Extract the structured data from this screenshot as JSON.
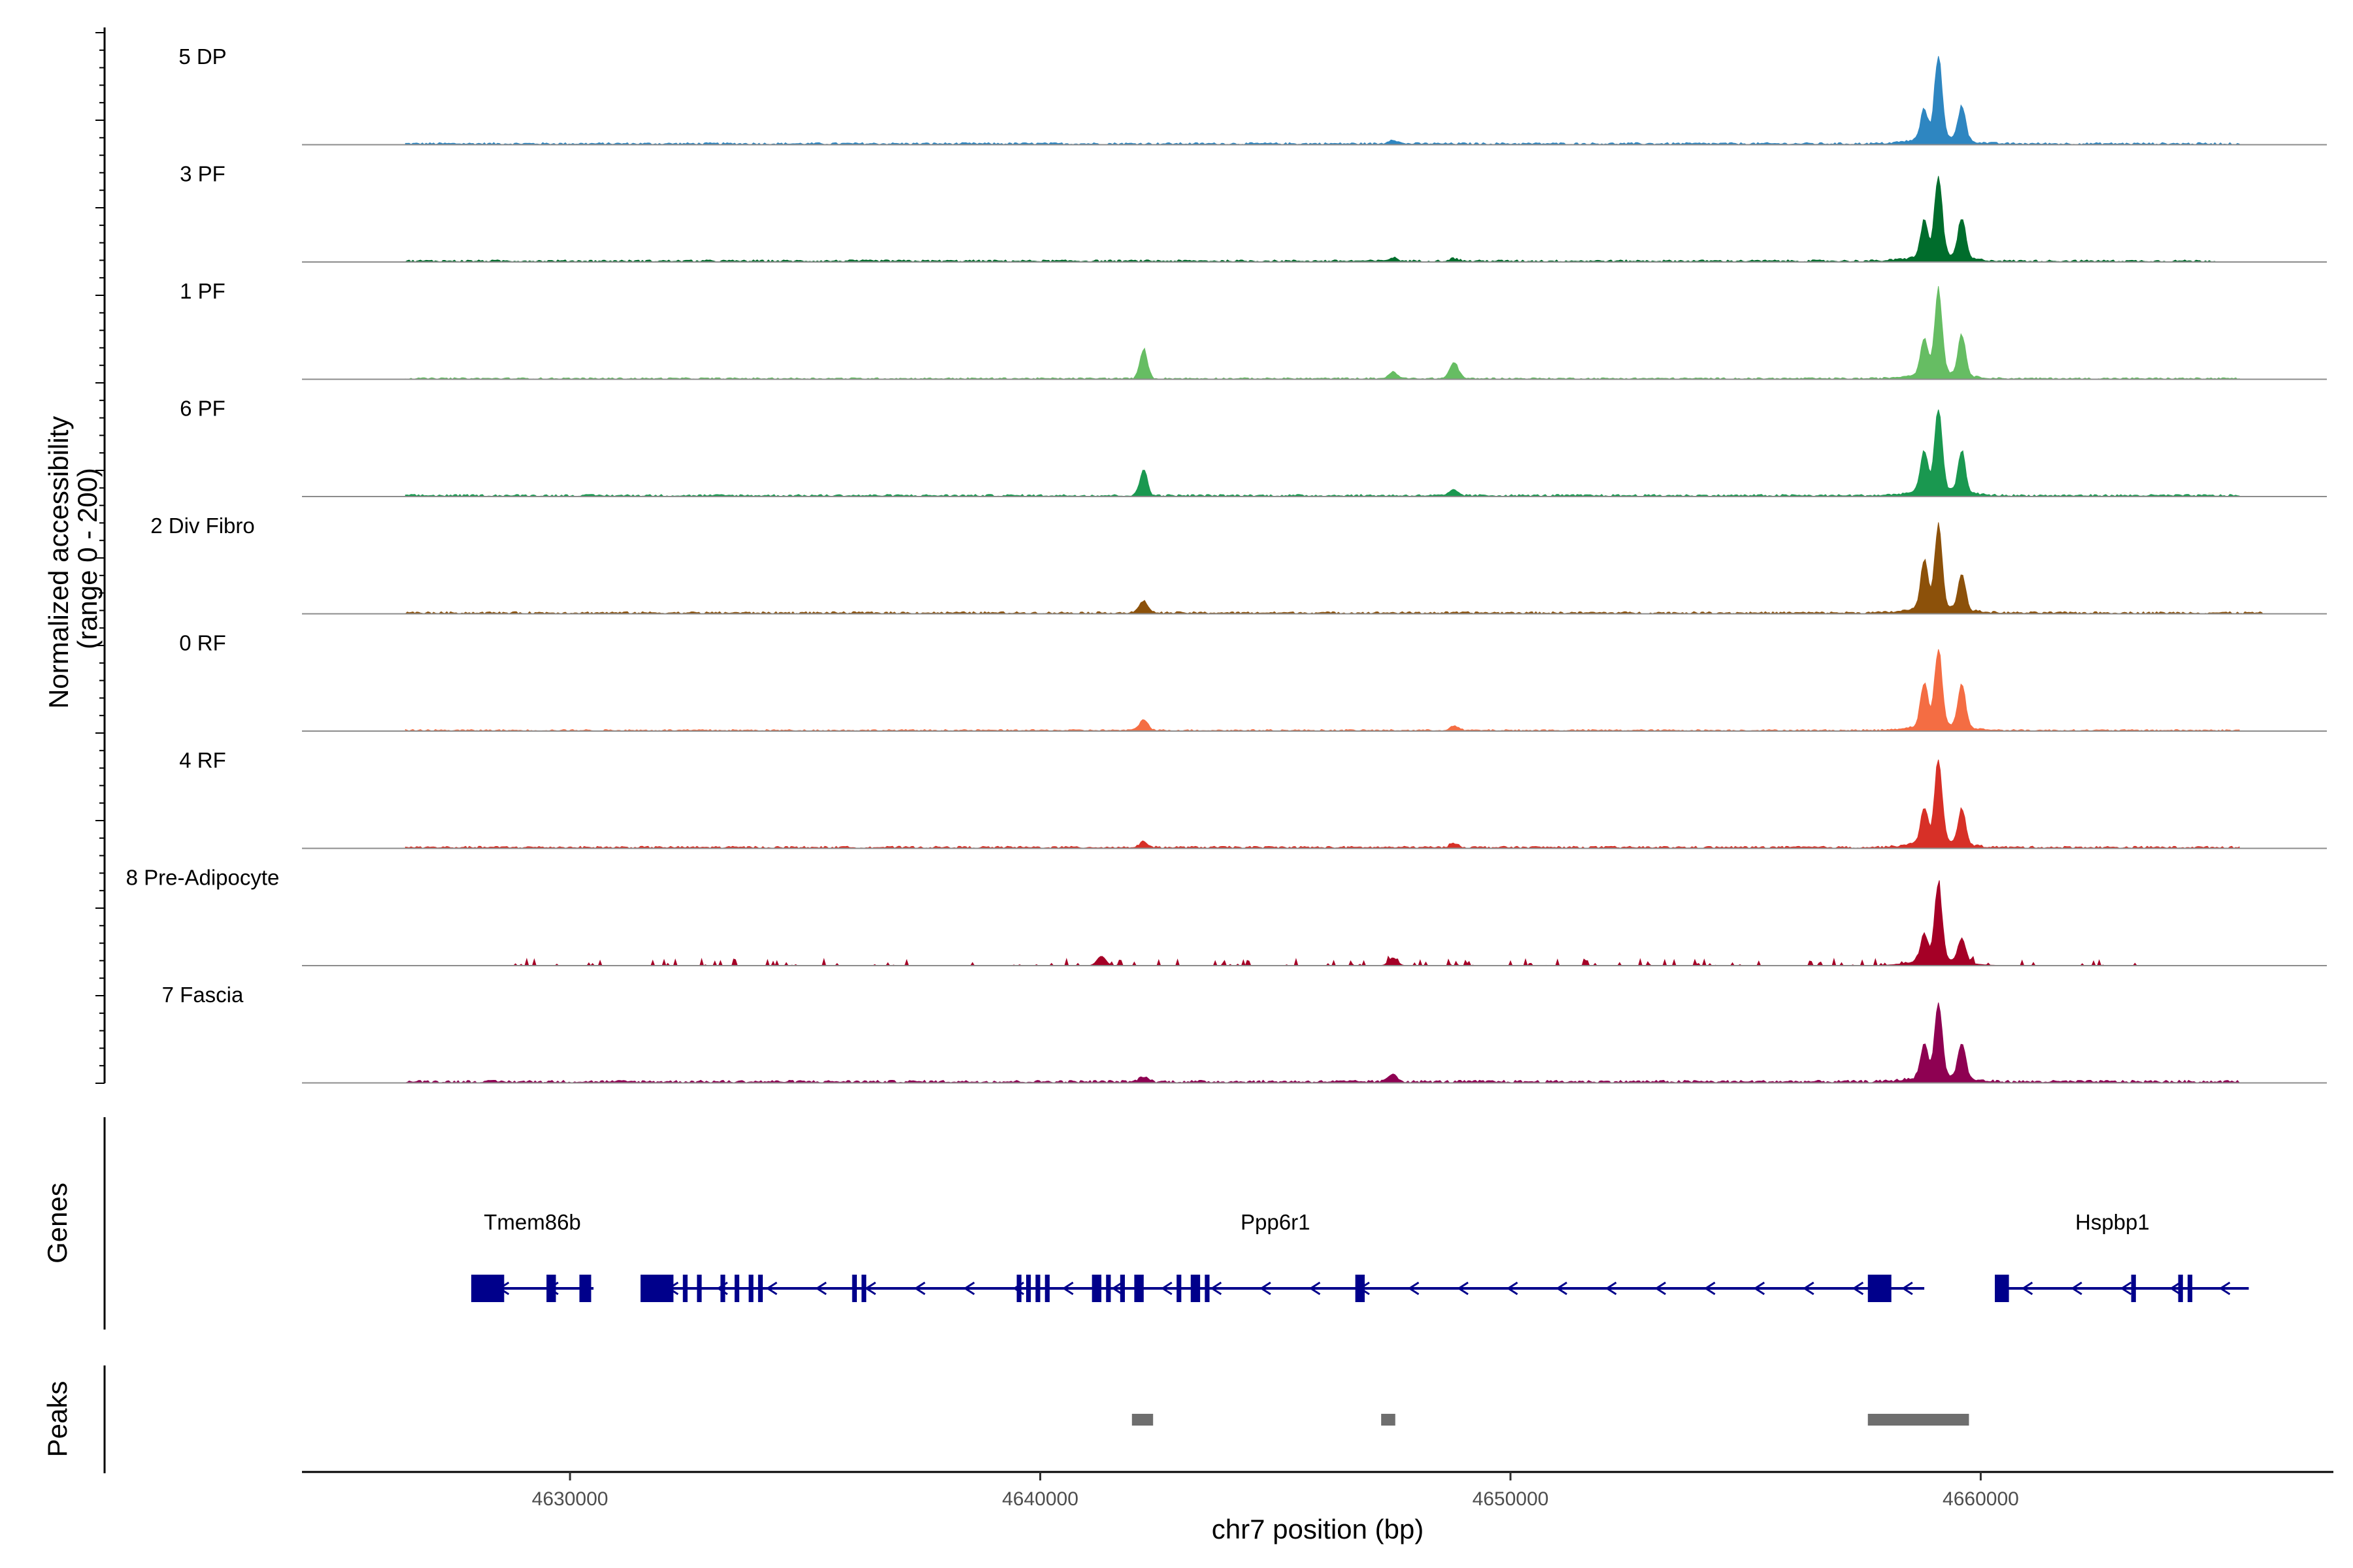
{
  "chart_data": {
    "type": "area",
    "title": "",
    "xlabel": "chr7 position (bp)",
    "ylabel": "Normalized accessibility\n(range 0 - 200)",
    "ylim": [
      0,
      200
    ],
    "xlim": [
      4624300,
      4667500
    ],
    "xticks": [
      4630000,
      4640000,
      4650000,
      4660000
    ],
    "xtick_labels": [
      "4630000",
      "4640000",
      "4650000",
      "4660000"
    ],
    "tracks": [
      {
        "name": "5 DP",
        "color": "#2e86c1",
        "peaks": [
          [
            4658800,
            55
          ],
          [
            4659100,
            155
          ],
          [
            4659600,
            65
          ],
          [
            4647500,
            8
          ]
        ],
        "noise": 4,
        "range": [
          4626500,
          4665500
        ]
      },
      {
        "name": "3 PF",
        "color": "#006d2c",
        "peaks": [
          [
            4658800,
            65
          ],
          [
            4659100,
            150
          ],
          [
            4659600,
            75
          ],
          [
            4647500,
            6
          ],
          [
            4648800,
            5
          ]
        ],
        "noise": 4,
        "range": [
          4626500,
          4665000
        ]
      },
      {
        "name": "1 PF",
        "color": "#66bd63",
        "peaks": [
          [
            4642200,
            55
          ],
          [
            4648800,
            30
          ],
          [
            4647500,
            12
          ],
          [
            4658800,
            65
          ],
          [
            4659100,
            155
          ],
          [
            4659600,
            75
          ]
        ],
        "noise": 3,
        "range": [
          4626500,
          4665500
        ]
      },
      {
        "name": "6 PF",
        "color": "#1a9850",
        "peaks": [
          [
            4642200,
            50
          ],
          [
            4648800,
            10
          ],
          [
            4658800,
            75
          ],
          [
            4659100,
            150
          ],
          [
            4659600,
            75
          ]
        ],
        "noise": 4,
        "range": [
          4626500,
          4665500
        ]
      },
      {
        "name": "2 Div Fibro",
        "color": "#8c510a",
        "peaks": [
          [
            4642200,
            22
          ],
          [
            4658800,
            90
          ],
          [
            4659100,
            150
          ],
          [
            4659600,
            65
          ]
        ],
        "noise": 4,
        "range": [
          4626500,
          4666000
        ]
      },
      {
        "name": "0 RF",
        "color": "#f46d43",
        "peaks": [
          [
            4642200,
            20
          ],
          [
            4648800,
            8
          ],
          [
            4658800,
            80
          ],
          [
            4659100,
            140
          ],
          [
            4659600,
            80
          ]
        ],
        "noise": 3,
        "range": [
          4626500,
          4665500
        ]
      },
      {
        "name": "4 RF",
        "color": "#d73027",
        "peaks": [
          [
            4642200,
            10
          ],
          [
            4648800,
            8
          ],
          [
            4658800,
            65
          ],
          [
            4659100,
            150
          ],
          [
            4659600,
            65
          ]
        ],
        "noise": 4,
        "range": [
          4626500,
          4665500
        ]
      },
      {
        "name": "8 Pre-Adipocyte",
        "color": "#a50026",
        "peaks": [
          [
            4641300,
            18
          ],
          [
            4647500,
            15
          ],
          [
            4658800,
            50
          ],
          [
            4659100,
            140
          ],
          [
            4659600,
            45
          ]
        ],
        "noise": 8,
        "range": [
          4628800,
          4663500
        ],
        "sparse": true
      },
      {
        "name": "7 Fascia",
        "color": "#8e0152",
        "peaks": [
          [
            4647500,
            15
          ],
          [
            4642200,
            10
          ],
          [
            4658800,
            60
          ],
          [
            4659100,
            135
          ],
          [
            4659600,
            65
          ]
        ],
        "noise": 5,
        "range": [
          4626500,
          4665500
        ]
      }
    ],
    "genes_track_label": "Genes",
    "genes": [
      {
        "name": "Tmem86b",
        "label_pos": 4629200,
        "start": 4627900,
        "end": 4630500,
        "strand": "-",
        "exons": [
          [
            4627900,
            4628600
          ],
          [
            4629500,
            4629700
          ],
          [
            4630200,
            4630450
          ]
        ]
      },
      {
        "name": "Ppp6r1",
        "label_pos": 4645000,
        "start": 4631500,
        "end": 4658800,
        "strand": "-",
        "exons": [
          [
            4631500,
            4632200
          ],
          [
            4632400,
            4632500
          ],
          [
            4632700,
            4632800
          ],
          [
            4633200,
            4633300
          ],
          [
            4633500,
            4633600
          ],
          [
            4633800,
            4633900
          ],
          [
            4634000,
            4634100
          ],
          [
            4636000,
            4636100
          ],
          [
            4636200,
            4636300
          ],
          [
            4639500,
            4639600
          ],
          [
            4639700,
            4639800
          ],
          [
            4639900,
            4640000
          ],
          [
            4640100,
            4640200
          ],
          [
            4641100,
            4641300
          ],
          [
            4641400,
            4641500
          ],
          [
            4641700,
            4641800
          ],
          [
            4642000,
            4642200
          ],
          [
            4642900,
            4643000
          ],
          [
            4643200,
            4643400
          ],
          [
            4643500,
            4643600
          ],
          [
            4646700,
            4646900
          ],
          [
            4657600,
            4658100
          ]
        ]
      },
      {
        "name": "Hspbp1",
        "label_pos": 4662800,
        "start": 4660300,
        "end": 4665700,
        "strand": "-",
        "exons": [
          [
            4660300,
            4660600
          ],
          [
            4663200,
            4663300
          ],
          [
            4664200,
            4664300
          ],
          [
            4664400,
            4664500
          ]
        ]
      }
    ],
    "peaks_track_label": "Peaks",
    "called_peaks": [
      [
        4641950,
        4642400
      ],
      [
        4647250,
        4647550
      ],
      [
        4657600,
        4659750
      ]
    ]
  }
}
